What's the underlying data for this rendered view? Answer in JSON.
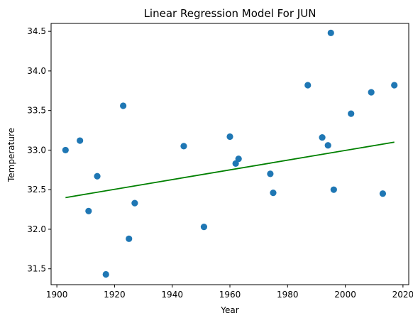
{
  "chart_data": {
    "type": "scatter",
    "title": "Linear Regression Model For JUN",
    "xlabel": "Year",
    "ylabel": "Temperature",
    "xlim": [
      1898,
      2022
    ],
    "ylim": [
      31.3,
      34.6
    ],
    "xticks": [
      1900,
      1920,
      1940,
      1960,
      1980,
      2000,
      2020
    ],
    "yticks": [
      31.5,
      32.0,
      32.5,
      33.0,
      33.5,
      34.0,
      34.5
    ],
    "grid": false,
    "point_color": "#1f77b4",
    "line_color": "#008000",
    "points": [
      {
        "x": 1903,
        "y": 33.0
      },
      {
        "x": 1908,
        "y": 33.12
      },
      {
        "x": 1911,
        "y": 32.23
      },
      {
        "x": 1914,
        "y": 32.67
      },
      {
        "x": 1917,
        "y": 31.43
      },
      {
        "x": 1923,
        "y": 33.56
      },
      {
        "x": 1925,
        "y": 31.88
      },
      {
        "x": 1927,
        "y": 32.33
      },
      {
        "x": 1944,
        "y": 33.05
      },
      {
        "x": 1951,
        "y": 32.03
      },
      {
        "x": 1960,
        "y": 33.17
      },
      {
        "x": 1962,
        "y": 32.83
      },
      {
        "x": 1963,
        "y": 32.89
      },
      {
        "x": 1974,
        "y": 32.7
      },
      {
        "x": 1975,
        "y": 32.46
      },
      {
        "x": 1987,
        "y": 33.82
      },
      {
        "x": 1992,
        "y": 33.16
      },
      {
        "x": 1994,
        "y": 33.06
      },
      {
        "x": 1995,
        "y": 34.48
      },
      {
        "x": 1996,
        "y": 32.5
      },
      {
        "x": 2002,
        "y": 33.46
      },
      {
        "x": 2009,
        "y": 33.73
      },
      {
        "x": 2013,
        "y": 32.45
      },
      {
        "x": 2017,
        "y": 33.82
      }
    ],
    "regression_line": {
      "x": [
        1903,
        2017
      ],
      "y": [
        32.4,
        33.1
      ]
    }
  }
}
